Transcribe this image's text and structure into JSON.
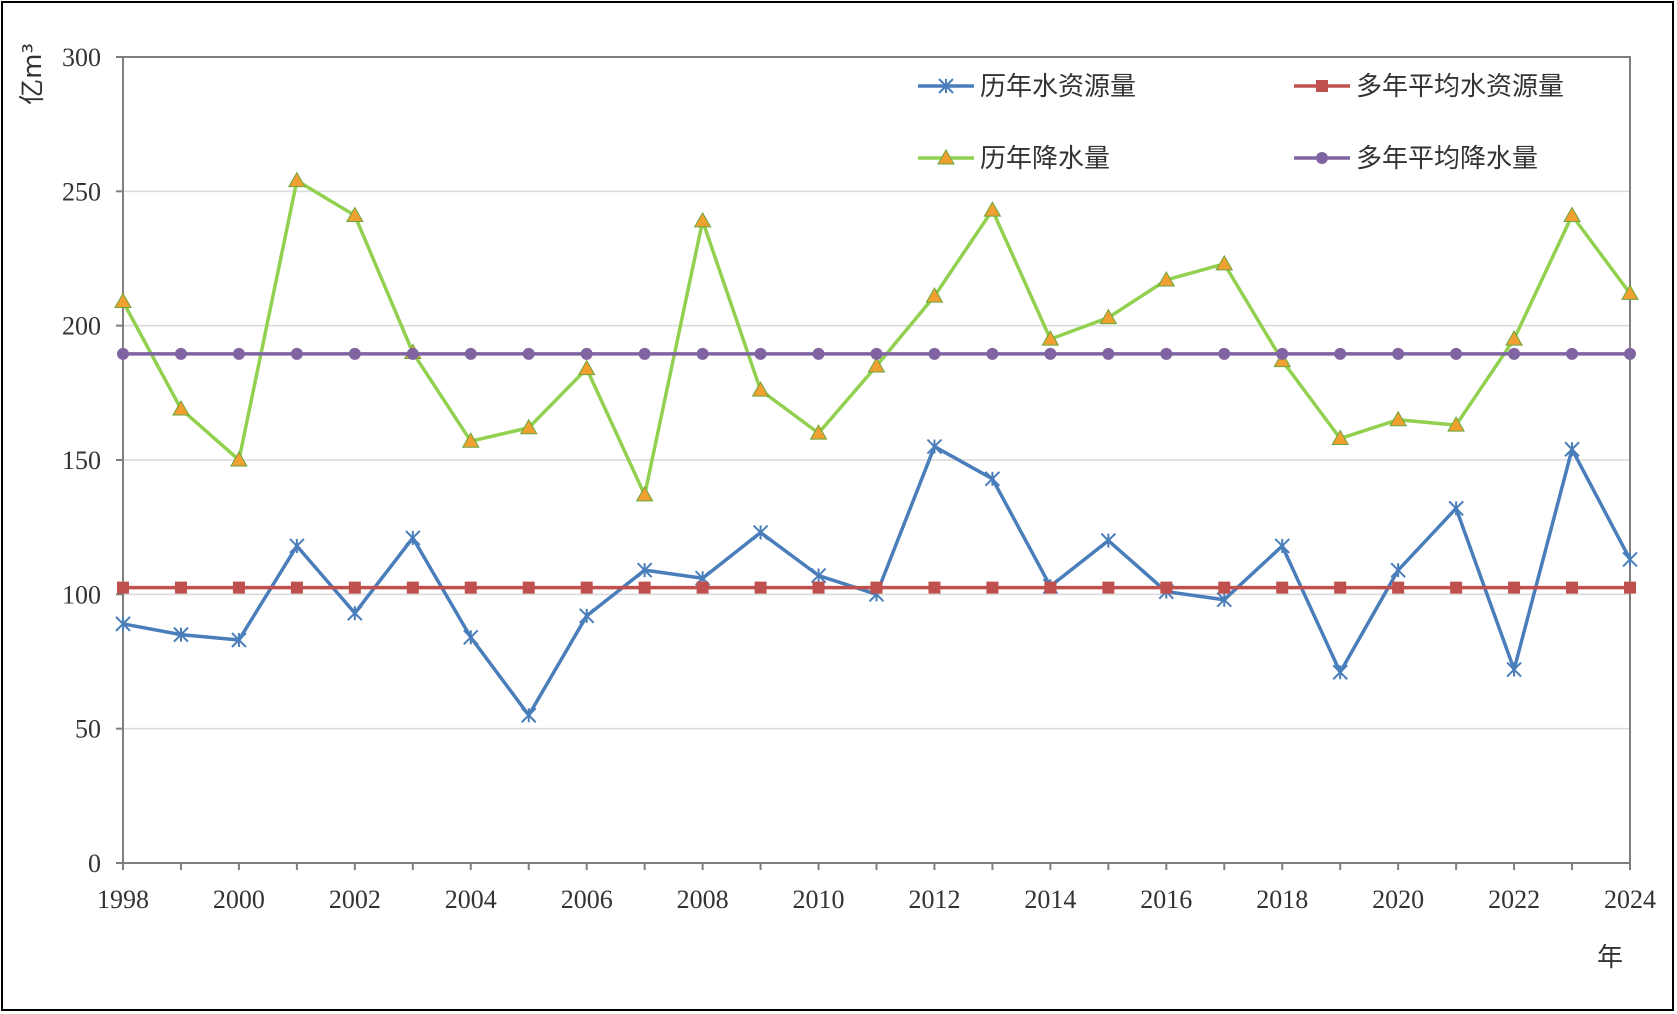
{
  "chart_data": {
    "type": "line",
    "title": "",
    "xlabel": "年",
    "ylabel": "亿m³",
    "ylim": [
      0,
      300
    ],
    "yticks": [
      0,
      50,
      100,
      150,
      200,
      250,
      300
    ],
    "xlim": [
      1998,
      2024
    ],
    "xticks": [
      1998,
      2000,
      2002,
      2004,
      2006,
      2008,
      2010,
      2012,
      2014,
      2016,
      2018,
      2020,
      2022,
      2024
    ],
    "grid": true,
    "legend_position": "top-right",
    "x": [
      1998,
      1999,
      2000,
      2001,
      2002,
      2003,
      2004,
      2005,
      2006,
      2007,
      2008,
      2009,
      2010,
      2011,
      2012,
      2013,
      2014,
      2015,
      2016,
      2017,
      2018,
      2019,
      2020,
      2021,
      2022,
      2023,
      2024
    ],
    "series": [
      {
        "name": "历年水资源量",
        "color": "#4a7ebb",
        "marker": "asterisk",
        "values": [
          89,
          85,
          83,
          118,
          93,
          121,
          84,
          55,
          92,
          109,
          106,
          123,
          107,
          100,
          155,
          143,
          103,
          120,
          101,
          98,
          118,
          71,
          109,
          132,
          72,
          154,
          113
        ]
      },
      {
        "name": "多年平均水资源量",
        "color": "#c0504d",
        "marker": "square",
        "values": [
          102.5,
          102.5,
          102.5,
          102.5,
          102.5,
          102.5,
          102.5,
          102.5,
          102.5,
          102.5,
          102.5,
          102.5,
          102.5,
          102.5,
          102.5,
          102.5,
          102.5,
          102.5,
          102.5,
          102.5,
          102.5,
          102.5,
          102.5,
          102.5,
          102.5,
          102.5,
          102.5
        ]
      },
      {
        "name": "历年降水量",
        "color": "#92d050",
        "marker": "triangle",
        "marker_color": "#f0a030",
        "values": [
          209,
          169,
          150,
          254,
          241,
          190,
          157,
          162,
          184,
          137,
          239,
          176,
          160,
          185,
          211,
          243,
          195,
          203,
          217,
          223,
          187,
          158,
          165,
          163,
          195,
          241,
          212
        ]
      },
      {
        "name": "多年平均降水量",
        "color": "#8064a2",
        "marker": "circle",
        "values": [
          189.5,
          189.5,
          189.5,
          189.5,
          189.5,
          189.5,
          189.5,
          189.5,
          189.5,
          189.5,
          189.5,
          189.5,
          189.5,
          189.5,
          189.5,
          189.5,
          189.5,
          189.5,
          189.5,
          189.5,
          189.5,
          189.5,
          189.5,
          189.5,
          189.5,
          189.5,
          189.5
        ]
      }
    ]
  }
}
